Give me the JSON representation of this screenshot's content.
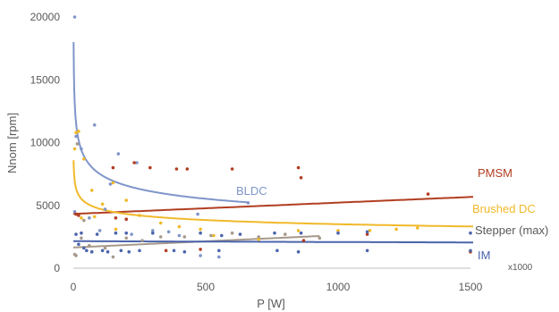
{
  "chart_data": {
    "type": "scatter",
    "title": "",
    "xlabel": "P [W]",
    "ylabel": "Nnom [rpm]",
    "x_multiplier_label": "x1000",
    "xlim": [
      0,
      1500
    ],
    "ylim": [
      0,
      20000
    ],
    "x_ticks": [
      "0",
      "500",
      "1000",
      "1500"
    ],
    "y_ticks": [
      "0",
      "5000",
      "10000",
      "15000",
      "20000"
    ],
    "grid": false,
    "legend": "none",
    "series": [
      {
        "name": "BLDC",
        "color": "#7f95c9",
        "trend": {
          "kind": "power",
          "a": 18000,
          "b": -0.19,
          "x_from": 1,
          "x_to": 660
        },
        "points": [
          [
            5,
            20000
          ],
          [
            10,
            10500
          ],
          [
            30,
            9500
          ],
          [
            80,
            11400
          ],
          [
            140,
            6700
          ],
          [
            170,
            9100
          ],
          [
            220,
            2700
          ],
          [
            240,
            8400
          ],
          [
            300,
            3000
          ],
          [
            360,
            2900
          ],
          [
            400,
            2600
          ],
          [
            470,
            4300
          ],
          [
            480,
            1000
          ],
          [
            550,
            900
          ],
          [
            660,
            5200
          ],
          [
            120,
            4700
          ],
          [
            60,
            4000
          ],
          [
            100,
            3000
          ],
          [
            5,
            4500
          ]
        ]
      },
      {
        "name": "PMSM",
        "color": "#b13e22",
        "trend": {
          "kind": "linear",
          "slope": 0.9,
          "intercept": 4320,
          "x_from": 0,
          "x_to": 1510
        },
        "points": [
          [
            10,
            4300
          ],
          [
            20,
            4200
          ],
          [
            150,
            8000
          ],
          [
            230,
            8400
          ],
          [
            290,
            8000
          ],
          [
            350,
            1400
          ],
          [
            390,
            7900
          ],
          [
            430,
            7900
          ],
          [
            480,
            1500
          ],
          [
            600,
            7900
          ],
          [
            850,
            8000
          ],
          [
            860,
            7200
          ],
          [
            870,
            2200
          ],
          [
            1110,
            2700
          ],
          [
            1340,
            5900
          ],
          [
            1500,
            1300
          ],
          [
            160,
            4000
          ],
          [
            200,
            3900
          ]
        ]
      },
      {
        "name": "Brushed DC",
        "color": "#f1b92a",
        "trend": {
          "kind": "power",
          "a": 8600,
          "b": -0.13,
          "x_from": 1,
          "x_to": 1510
        },
        "points": [
          [
            5,
            9500
          ],
          [
            10,
            10800
          ],
          [
            20,
            10900
          ],
          [
            40,
            8700
          ],
          [
            70,
            6200
          ],
          [
            110,
            5100
          ],
          [
            150,
            6800
          ],
          [
            200,
            5400
          ],
          [
            250,
            4200
          ],
          [
            330,
            3600
          ],
          [
            400,
            3300
          ],
          [
            480,
            3100
          ],
          [
            530,
            2600
          ],
          [
            700,
            2300
          ],
          [
            850,
            3000
          ],
          [
            1000,
            3000
          ],
          [
            1120,
            3000
          ],
          [
            1220,
            3100
          ],
          [
            1300,
            3200
          ],
          [
            30,
            4000
          ],
          [
            80,
            4100
          ],
          [
            160,
            3100
          ]
        ]
      },
      {
        "name": "Stepper (max)",
        "color": "#a6998b",
        "trend": {
          "kind": "linear",
          "slope": 0.98,
          "intercept": 1650,
          "x_from": 0,
          "x_to": 930
        },
        "points": [
          [
            5,
            1100
          ],
          [
            10,
            1000
          ],
          [
            15,
            9900
          ],
          [
            30,
            2400
          ],
          [
            60,
            1800
          ],
          [
            120,
            1600
          ],
          [
            150,
            900
          ],
          [
            200,
            2400
          ],
          [
            260,
            2200
          ],
          [
            330,
            2500
          ],
          [
            420,
            2500
          ],
          [
            520,
            2600
          ],
          [
            600,
            2800
          ],
          [
            700,
            2500
          ],
          [
            800,
            2700
          ],
          [
            930,
            2400
          ],
          [
            40,
            3800
          ],
          [
            70,
            1300
          ]
        ]
      },
      {
        "name": "IM",
        "color": "#4b64ac",
        "trend": {
          "kind": "linear",
          "slope": -0.067,
          "intercept": 2150,
          "x_from": 0,
          "x_to": 1510
        },
        "points": [
          [
            10,
            2700
          ],
          [
            30,
            2800
          ],
          [
            50,
            1400
          ],
          [
            70,
            1300
          ],
          [
            90,
            2700
          ],
          [
            110,
            1400
          ],
          [
            130,
            1300
          ],
          [
            160,
            2800
          ],
          [
            180,
            1400
          ],
          [
            200,
            2800
          ],
          [
            210,
            1300
          ],
          [
            250,
            1400
          ],
          [
            300,
            2800
          ],
          [
            380,
            1400
          ],
          [
            420,
            1300
          ],
          [
            480,
            2800
          ],
          [
            550,
            1400
          ],
          [
            560,
            2600
          ],
          [
            630,
            2700
          ],
          [
            760,
            2800
          ],
          [
            770,
            1400
          ],
          [
            850,
            1300
          ],
          [
            860,
            2800
          ],
          [
            1000,
            2800
          ],
          [
            1110,
            2900
          ],
          [
            1110,
            1400
          ],
          [
            1500,
            2800
          ],
          [
            1500,
            1400
          ],
          [
            20,
            1900
          ],
          [
            40,
            1600
          ]
        ]
      }
    ]
  }
}
